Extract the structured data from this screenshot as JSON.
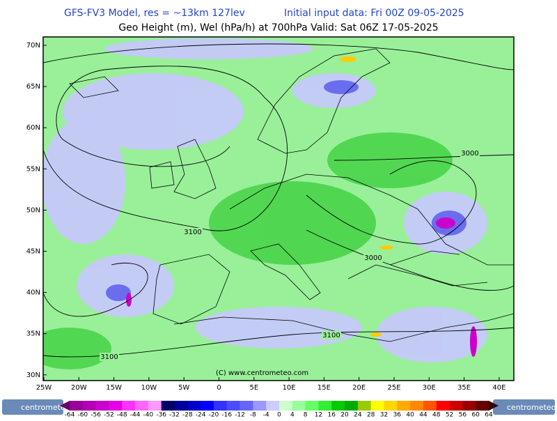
{
  "header": {
    "line1_left": "GFS-FV3 Model, res = ~13km 127lev",
    "line1_right": "Initial input data: Fri 00Z 09-05-2025",
    "line2": "Geo Height (m), Wel (hPa/h) at 700hPa  Valid: Sat 06Z 17-05-2025"
  },
  "map": {
    "lat_labels": [
      "70N",
      "65N",
      "60N",
      "55N",
      "50N",
      "45N",
      "40N",
      "35N",
      "30N"
    ],
    "lon_labels": [
      "25W",
      "20W",
      "15W",
      "10W",
      "5W",
      "0",
      "5E",
      "10E",
      "15E",
      "20E",
      "25E",
      "30E",
      "35E",
      "40E"
    ],
    "contour_labels": [
      "3000",
      "3100",
      "3000",
      "3100",
      "3100"
    ],
    "copyright": "(C) www.centrometeo.com"
  },
  "colorbar": {
    "labels": [
      -64,
      -60,
      -56,
      -52,
      -48,
      -44,
      -40,
      -36,
      -32,
      -28,
      -24,
      -20,
      -16,
      -12,
      -8,
      -4,
      0,
      4,
      8,
      12,
      16,
      20,
      24,
      28,
      32,
      36,
      40,
      44,
      48,
      52,
      56,
      60,
      64
    ]
  },
  "footer": {
    "logo": "centrometeo"
  }
}
